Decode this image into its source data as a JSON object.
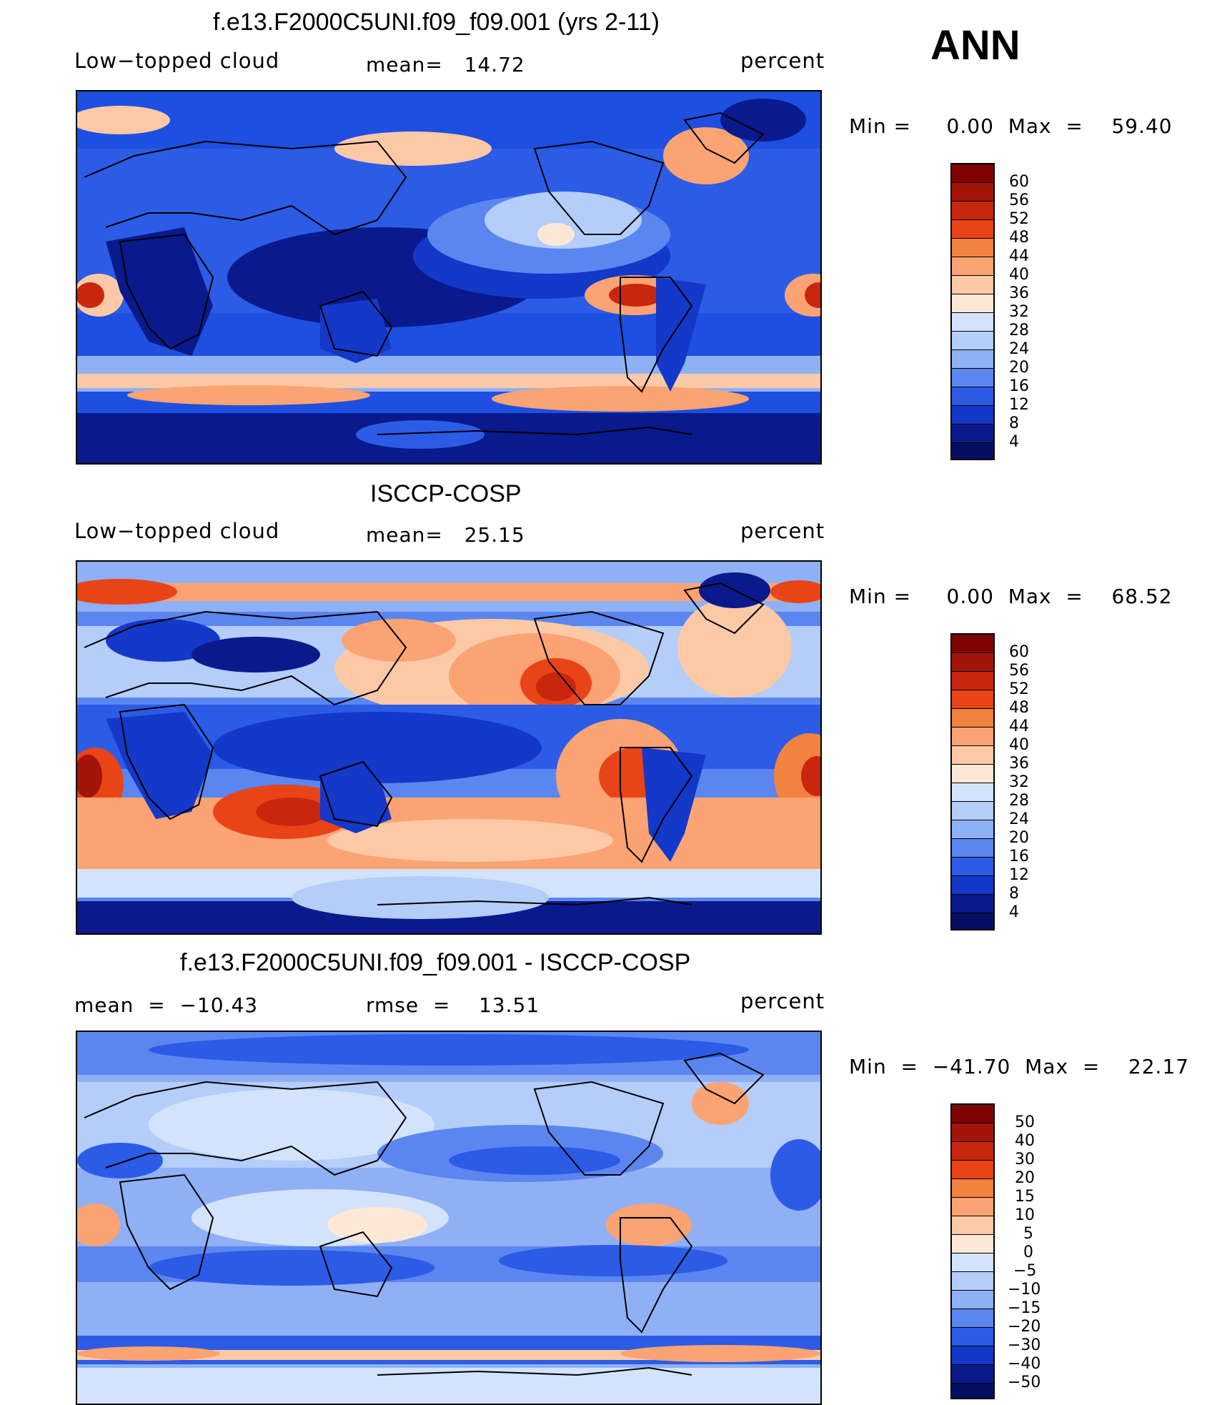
{
  "header": {
    "season": "ANN"
  },
  "colors": {
    "ocean_deep": "#0a1a8c",
    "blue": "#1e4fe0",
    "mid_blue": "#5b86f0",
    "light_blue": "#c9dcfb",
    "peach": "#fcc9a7",
    "orange": "#f2823f",
    "red": "#c8270e",
    "dark_red": "#7f0000"
  },
  "panels": [
    {
      "title": "f.e13.F2000C5UNI.f09_f09.001 (yrs 2-11)",
      "left_label": "Low−topped cloud",
      "mid_label": "mean=   14.72",
      "right_label": "percent",
      "range_label": "Min =     0.00  Max  =    59.40",
      "colorbar": {
        "ticks": [
          "60",
          "56",
          "52",
          "48",
          "44",
          "40",
          "36",
          "32",
          "28",
          "24",
          "20",
          "16",
          "12",
          "8",
          "4"
        ],
        "colors": [
          "#7f0000",
          "#a3150a",
          "#c8270e",
          "#e84417",
          "#f2823f",
          "#fba372",
          "#fcc9a7",
          "#fde8d8",
          "#d3e3fb",
          "#b4cdf9",
          "#8fb0f5",
          "#5b86f0",
          "#2c5ce6",
          "#1438c8",
          "#0a1a8c",
          "#060e62"
        ]
      }
    },
    {
      "title": "ISCCP-COSP",
      "left_label": "Low−topped cloud",
      "mid_label": "mean=   25.15",
      "right_label": "percent",
      "range_label": "Min =     0.00  Max  =    68.52",
      "colorbar": {
        "ticks": [
          "60",
          "56",
          "52",
          "48",
          "44",
          "40",
          "36",
          "32",
          "28",
          "24",
          "20",
          "16",
          "12",
          "8",
          "4"
        ],
        "colors": [
          "#7f0000",
          "#a3150a",
          "#c8270e",
          "#e84417",
          "#f2823f",
          "#fba372",
          "#fcc9a7",
          "#fde8d8",
          "#d3e3fb",
          "#b4cdf9",
          "#8fb0f5",
          "#5b86f0",
          "#2c5ce6",
          "#1438c8",
          "#0a1a8c",
          "#060e62"
        ]
      }
    },
    {
      "title": "f.e13.F2000C5UNI.f09_f09.001 - ISCCP-COSP",
      "left_label": "mean  =  −10.43",
      "mid_label": "rmse  =    13.51",
      "right_label": "percent",
      "range_label": "Min  =  −41.70  Max  =    22.17",
      "colorbar": {
        "ticks": [
          "50",
          "40",
          "30",
          "20",
          "15",
          "10",
          "5",
          "0",
          "−5",
          "−10",
          "−15",
          "−20",
          "−30",
          "−40",
          "−50"
        ],
        "colors": [
          "#7f0000",
          "#a3150a",
          "#c8270e",
          "#e84417",
          "#f2823f",
          "#fba372",
          "#fcc9a7",
          "#fde8d8",
          "#d3e3fb",
          "#b4cdf9",
          "#8fb0f5",
          "#5b86f0",
          "#2c5ce6",
          "#1438c8",
          "#0a1a8c",
          "#060e62"
        ]
      }
    }
  ]
}
